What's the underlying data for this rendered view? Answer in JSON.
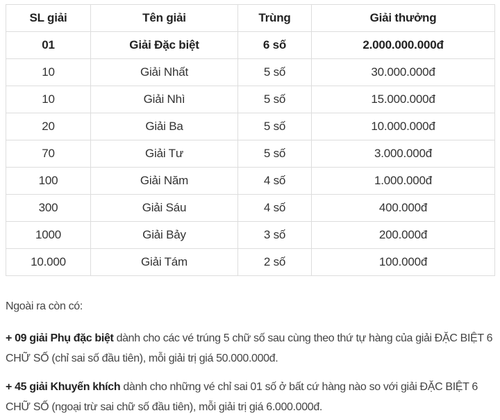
{
  "table": {
    "headers": [
      "SL giải",
      "Tên giải",
      "Trùng",
      "Giải thưởng"
    ],
    "rows": [
      [
        "01",
        "Giải Đặc biệt",
        "6 số",
        "2.000.000.000đ"
      ],
      [
        "10",
        "Giải Nhất",
        "5 số",
        "30.000.000đ"
      ],
      [
        "10",
        "Giải Nhì",
        "5 số",
        "15.000.000đ"
      ],
      [
        "20",
        "Giải Ba",
        "5 số",
        "10.000.000đ"
      ],
      [
        "70",
        "Giải Tư",
        "5 số",
        "3.000.000đ"
      ],
      [
        "100",
        "Giải Năm",
        "4 số",
        "1.000.000đ"
      ],
      [
        "300",
        "Giải Sáu",
        "4 số",
        "400.000đ"
      ],
      [
        "1000",
        "Giải Bảy",
        "3 số",
        "200.000đ"
      ],
      [
        "10.000",
        "Giải Tám",
        "2 số",
        "100.000đ"
      ]
    ]
  },
  "notes": {
    "intro": "Ngoài ra còn có:",
    "items": [
      {
        "bold": "+ 09 giải Phụ đặc biệt",
        "text": " dành cho các vé trúng 5 chữ số sau cùng theo thứ tự hàng của giải ĐẶC BIỆT 6 CHỮ SỐ (chỉ sai số đầu tiên), mỗi giải trị giá 50.000.000đ."
      },
      {
        "bold": "+ 45 giải Khuyến khích",
        "text": " dành cho những vé chỉ sai 01 số ở bất cứ hàng nào so với giải ĐẶC BIỆT 6 CHỮ SỐ (ngoại trừ sai chữ số đầu tiên), mỗi giải trị giá 6.000.000đ."
      }
    ]
  }
}
